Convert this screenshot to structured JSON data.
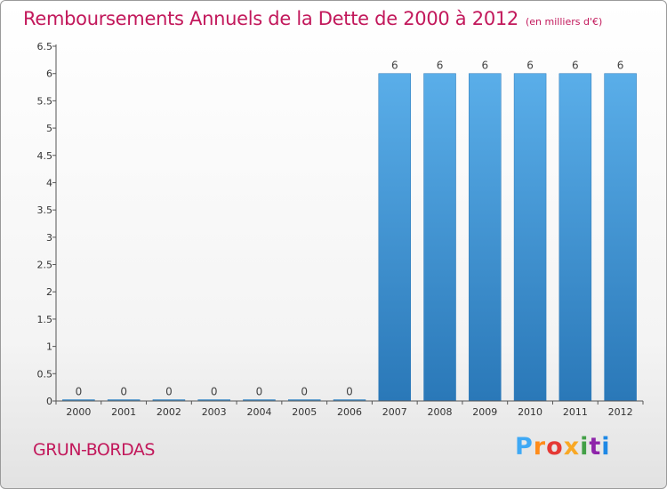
{
  "title": "Remboursements Annuels de la Dette de 2000 à 2012",
  "subtitle": "(en milliers d'€)",
  "place": "GRUN-BORDAS",
  "logo": {
    "letters": [
      "P",
      "r",
      "o",
      "x",
      "i",
      "t",
      "i"
    ],
    "colors": [
      "#3fa9f5",
      "#ff8c1a",
      "#e53935",
      "#f9a825",
      "#43a047",
      "#8e24aa",
      "#1e88e5"
    ]
  },
  "colors": {
    "bar_top": "#5aaee9",
    "bar_bottom": "#2a78b8",
    "accent": "#c2185b"
  },
  "chart_data": {
    "type": "bar",
    "categories": [
      "2000",
      "2001",
      "2002",
      "2003",
      "2004",
      "2005",
      "2006",
      "2007",
      "2008",
      "2009",
      "2010",
      "2011",
      "2012"
    ],
    "values": [
      0,
      0,
      0,
      0,
      0,
      0,
      0,
      6,
      6,
      6,
      6,
      6,
      6
    ],
    "data_labels": [
      "0",
      "0",
      "0",
      "0",
      "0",
      "0",
      "0",
      "6",
      "6",
      "6",
      "6",
      "6",
      "6"
    ],
    "yticks": [
      "0",
      "0.5",
      "1",
      "1.5",
      "2",
      "2.5",
      "3",
      "3.5",
      "4",
      "4.5",
      "5",
      "5.5",
      "6",
      "6.5"
    ],
    "ylim": [
      0,
      6.5
    ],
    "grid": false
  }
}
